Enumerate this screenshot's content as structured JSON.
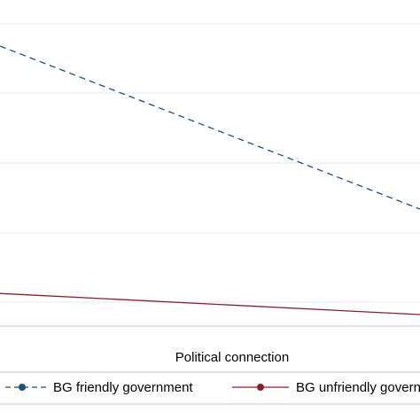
{
  "chart_data": {
    "type": "line",
    "xlabel": "Political connection",
    "x": [
      0,
      1
    ],
    "ylim": [
      0,
      8.5
    ],
    "grid": true,
    "legend_position": "bottom",
    "series": [
      {
        "name": "BG friendly government",
        "values": [
          7.3,
          3.05
        ],
        "color": "#1f4e79",
        "style": "dashed",
        "marker": "circle"
      },
      {
        "name": "BG unfriendly government",
        "values": [
          0.85,
          0.3
        ],
        "color": "#8b1e2b",
        "style": "solid",
        "marker": "circle"
      }
    ]
  },
  "colors": {
    "background": "#ffffff",
    "plot_background": "#ffffff",
    "gridline": "#e4eaef",
    "frame": "#bfc7cf"
  }
}
